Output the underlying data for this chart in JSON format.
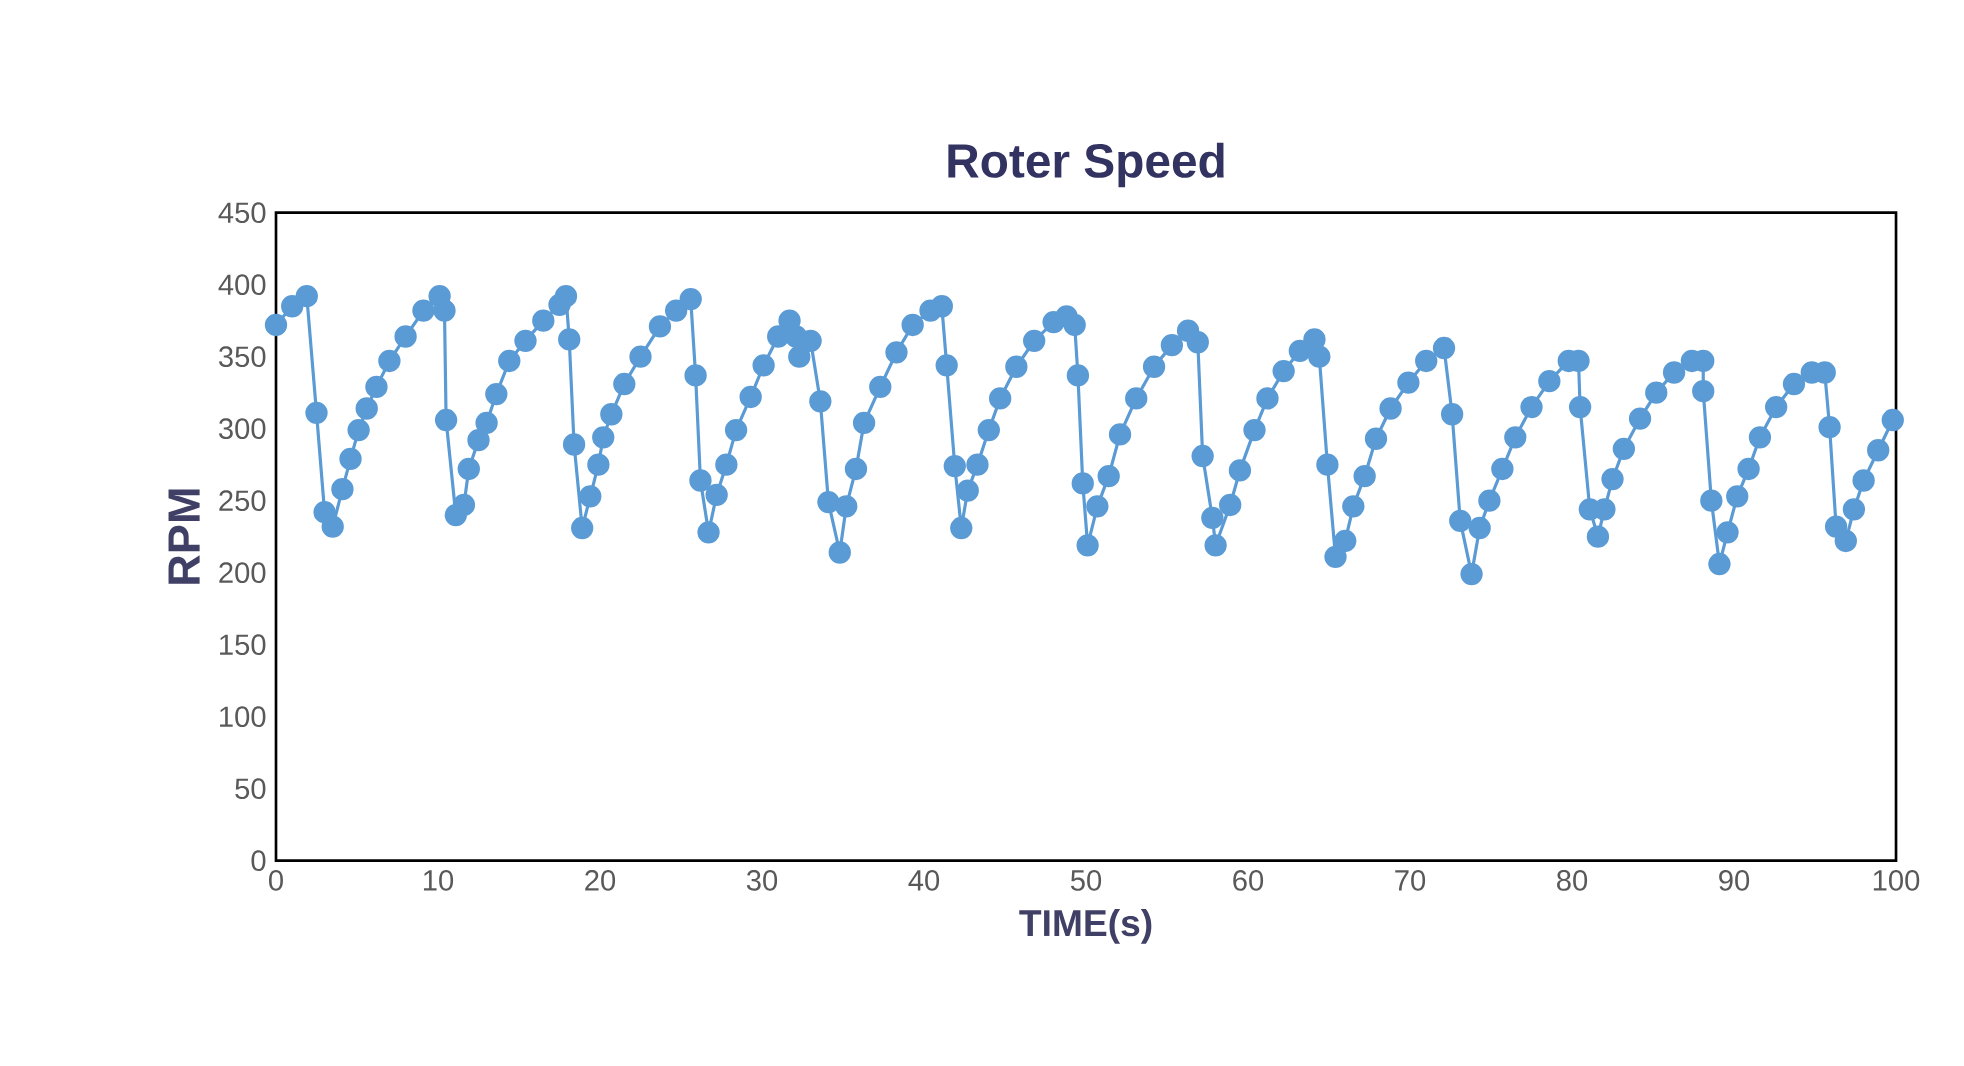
{
  "chart_data": {
    "type": "line",
    "title": "Roter Speed",
    "xlabel": "TIME(s)",
    "ylabel": "RPM",
    "xlim": [
      0,
      100
    ],
    "ylim": [
      0,
      450
    ],
    "xticks": [
      0,
      10,
      20,
      30,
      40,
      50,
      60,
      70,
      80,
      90,
      100
    ],
    "yticks": [
      0,
      50,
      100,
      150,
      200,
      250,
      300,
      350,
      400,
      450
    ],
    "marker": "circle",
    "line_style": "solid",
    "series": [
      {
        "color": "#5b9bd5",
        "x": [
          0,
          1,
          1.9,
          2.5,
          3.0,
          3.5,
          4.1,
          4.6,
          5.1,
          5.6,
          6.2,
          7.0,
          8.0,
          9.1,
          10.1,
          10.4,
          10.5,
          11.1,
          11.6,
          11.9,
          12.5,
          13.0,
          13.6,
          14.4,
          15.4,
          16.5,
          17.5,
          17.9,
          18.1,
          18.4,
          18.9,
          19.4,
          19.9,
          20.2,
          20.7,
          21.5,
          22.5,
          23.7,
          24.7,
          25.6,
          25.9,
          26.2,
          26.7,
          27.2,
          27.8,
          28.4,
          29.3,
          30.1,
          31.0,
          31.7,
          32.1,
          32.3,
          33.0,
          33.6,
          34.1,
          34.8,
          35.2,
          35.8,
          36.3,
          37.3,
          38.3,
          39.3,
          40.4,
          41.1,
          41.4,
          41.9,
          42.3,
          42.7,
          43.3,
          44.0,
          44.7,
          45.7,
          46.8,
          48.0,
          48.8,
          49.3,
          49.5,
          49.8,
          50.1,
          50.7,
          51.4,
          52.1,
          53.1,
          54.2,
          55.3,
          56.3,
          56.9,
          57.2,
          57.8,
          58.0,
          58.9,
          59.5,
          60.4,
          61.2,
          62.2,
          63.2,
          64.1,
          64.4,
          64.9,
          65.4,
          66.0,
          66.5,
          67.2,
          67.9,
          68.8,
          69.9,
          71.0,
          72.1,
          72.6,
          73.1,
          73.8,
          74.3,
          74.9,
          75.7,
          76.5,
          77.5,
          78.6,
          79.8,
          80.4,
          80.5,
          81.1,
          81.6,
          82.0,
          82.5,
          83.2,
          84.2,
          85.2,
          86.3,
          87.4,
          88.1,
          88.1,
          88.6,
          89.1,
          89.6,
          90.2,
          90.9,
          91.6,
          92.6,
          93.7,
          94.8,
          95.6,
          95.9,
          96.3,
          96.9,
          97.4,
          98.0,
          98.9,
          99.8
        ],
        "values": [
          372,
          385,
          392,
          311,
          242,
          232,
          258,
          279,
          299,
          314,
          329,
          347,
          364,
          382,
          392,
          382,
          306,
          240,
          247,
          272,
          292,
          304,
          324,
          347,
          361,
          375,
          386,
          392,
          362,
          289,
          231,
          253,
          275,
          294,
          310,
          331,
          350,
          371,
          382,
          390,
          337,
          264,
          228,
          254,
          275,
          299,
          322,
          344,
          364,
          375,
          364,
          350,
          361,
          319,
          249,
          214,
          246,
          272,
          304,
          329,
          353,
          372,
          382,
          385,
          344,
          274,
          231,
          257,
          275,
          299,
          321,
          343,
          361,
          374,
          378,
          372,
          337,
          262,
          219,
          246,
          267,
          296,
          321,
          343,
          358,
          368,
          360,
          281,
          238,
          219,
          247,
          271,
          299,
          321,
          340,
          354,
          362,
          350,
          275,
          211,
          222,
          246,
          267,
          293,
          314,
          332,
          347,
          356,
          310,
          236,
          199,
          231,
          250,
          272,
          294,
          315,
          333,
          347,
          347,
          315,
          244,
          225,
          244,
          265,
          286,
          307,
          325,
          339,
          347,
          347,
          326,
          250,
          206,
          228,
          253,
          272,
          294,
          315,
          331,
          339,
          339,
          301,
          232,
          222,
          244,
          264,
          285,
          306
        ]
      }
    ]
  }
}
